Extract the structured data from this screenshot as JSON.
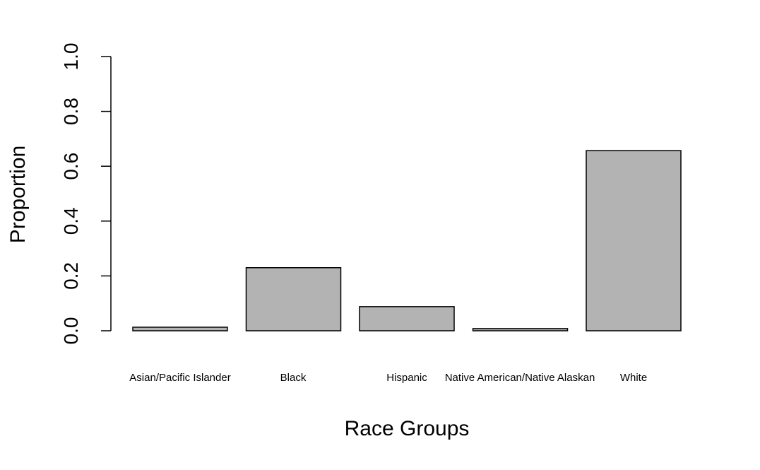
{
  "chart_data": {
    "type": "bar",
    "categories": [
      "Asian/Pacific Islander",
      "Black",
      "Hispanic",
      "Native American/Native Alaskan",
      "White"
    ],
    "values": [
      0.013,
      0.23,
      0.088,
      0.008,
      0.657
    ],
    "xlabel": "Race Groups",
    "ylabel": "Proportion",
    "ylim": [
      0,
      1
    ],
    "yticks": [
      "0.0",
      "0.2",
      "0.4",
      "0.6",
      "0.8",
      "1.0"
    ],
    "grid": false,
    "bar_color": "#b3b3b3",
    "edge_color": "#000000"
  }
}
